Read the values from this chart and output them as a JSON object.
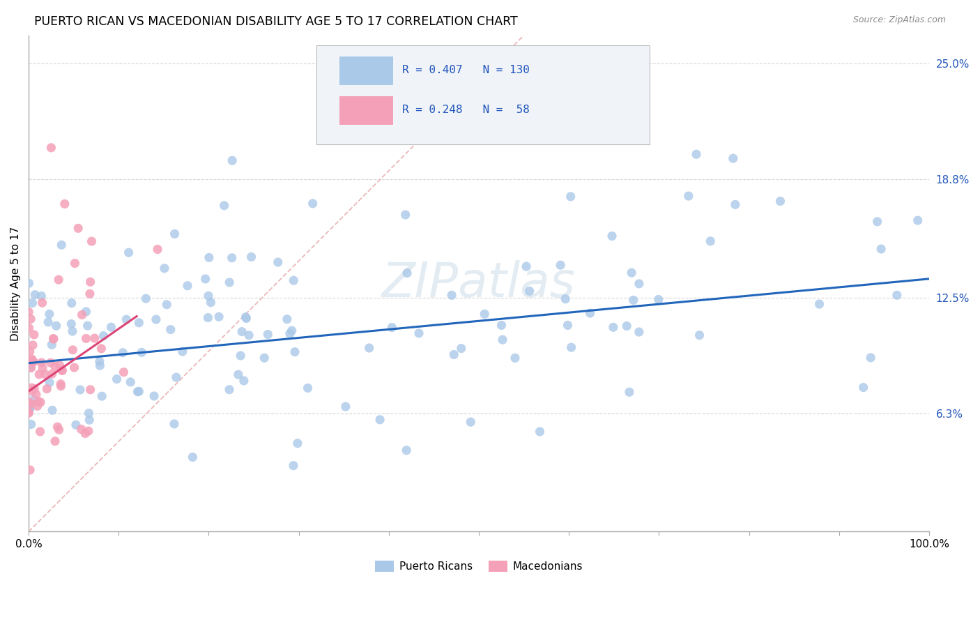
{
  "title": "PUERTO RICAN VS MACEDONIAN DISABILITY AGE 5 TO 17 CORRELATION CHART",
  "source_text": "Source: ZipAtlas.com",
  "ylabel": "Disability Age 5 to 17",
  "xlim": [
    0.0,
    1.0
  ],
  "ylim": [
    0.0,
    0.265
  ],
  "yticks": [
    0.063,
    0.125,
    0.188,
    0.25
  ],
  "ytick_labels": [
    "6.3%",
    "12.5%",
    "18.8%",
    "25.0%"
  ],
  "blue_color": "#aac8e8",
  "pink_color": "#f4a0b8",
  "blue_line_color": "#2266bb",
  "pink_line_color": "#dd4477",
  "diag_color": "#e8b0b0",
  "legend_color": "#2255bb",
  "watermark": "ZIPatlas",
  "blue_R": 0.407,
  "blue_N": 130,
  "pink_R": 0.248,
  "pink_N": 58,
  "background_color": "#ffffff",
  "grid_color": "#cccccc",
  "blue_trend_x0": 0.0,
  "blue_trend_y0": 0.09,
  "blue_trend_x1": 1.0,
  "blue_trend_y1": 0.135,
  "pink_trend_x0": 0.0,
  "pink_trend_y0": 0.075,
  "pink_trend_x1": 0.12,
  "pink_trend_y1": 0.115
}
